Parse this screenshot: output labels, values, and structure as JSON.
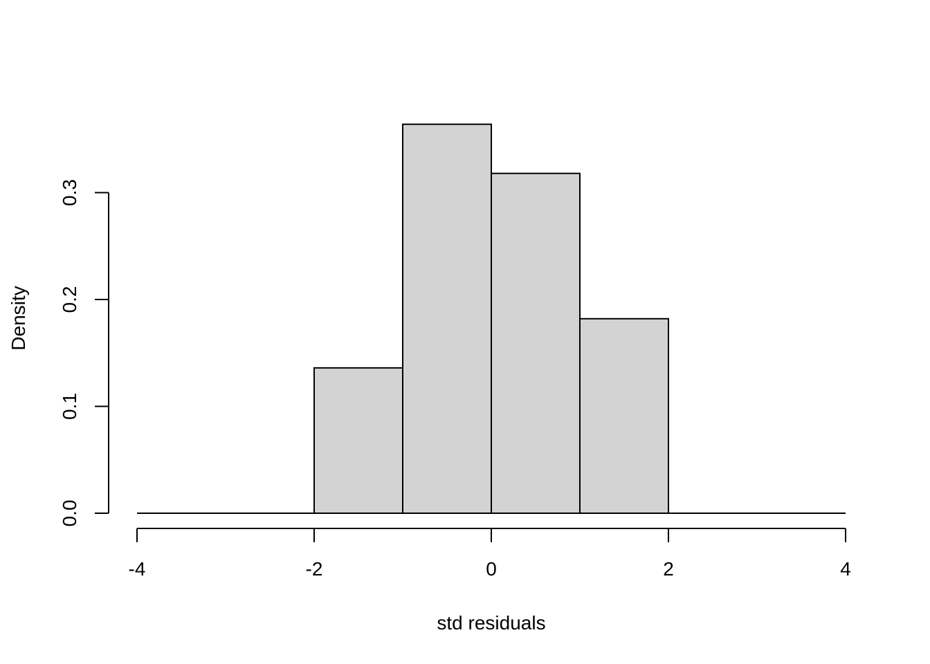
{
  "chart_data": {
    "type": "bar",
    "subtype": "histogram",
    "title": "",
    "xlabel": "std residuals",
    "ylabel": "Density",
    "bins": [
      {
        "from": -4,
        "to": -3,
        "density": 0.0
      },
      {
        "from": -3,
        "to": -2,
        "density": 0.0
      },
      {
        "from": -2,
        "to": -1,
        "density": 0.136
      },
      {
        "from": -1,
        "to": 0,
        "density": 0.364
      },
      {
        "from": 0,
        "to": 1,
        "density": 0.318
      },
      {
        "from": 1,
        "to": 2,
        "density": 0.182
      },
      {
        "from": 2,
        "to": 3,
        "density": 0.0
      },
      {
        "from": 3,
        "to": 4,
        "density": 0.0
      }
    ],
    "xlim": [
      -4,
      4
    ],
    "ylim": [
      0,
      0.3636
    ],
    "xticks": [
      -4,
      -2,
      0,
      2,
      4
    ],
    "xtick_labels": [
      "-4",
      "-2",
      "0",
      "2",
      "4"
    ],
    "yticks": [
      0.0,
      0.1,
      0.2,
      0.3
    ],
    "ytick_labels": [
      "0.0",
      "0.1",
      "0.2",
      "0.3"
    ],
    "bar_fill": "#d3d3d3",
    "bar_stroke": "#000000",
    "grid": false,
    "legend": "none"
  }
}
